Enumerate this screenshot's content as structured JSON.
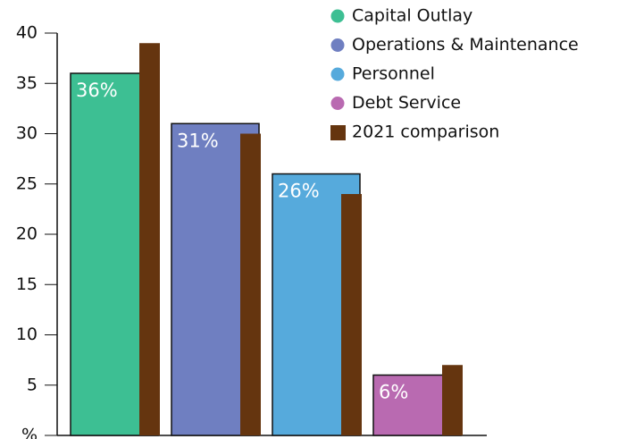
{
  "chart_data": {
    "type": "bar",
    "categories": [
      "Capital Outlay",
      "Operations & Maintenance",
      "Personnel",
      "Debt Service"
    ],
    "series": [
      {
        "values": [
          36,
          31,
          26,
          6
        ],
        "value_labels": [
          "36%",
          "31%",
          "26%",
          "6%"
        ],
        "colors": [
          "#3dbf93",
          "#6f7fc1",
          "#56aadc",
          "#b96ab1"
        ]
      },
      {
        "name": "2021 comparison",
        "color": "#65350f",
        "values": [
          39,
          30,
          24,
          7
        ]
      }
    ],
    "ylim": [
      0,
      40
    ],
    "yticks": [
      {
        "value": 0,
        "label": "%"
      },
      5,
      10,
      15,
      20,
      25,
      30,
      35,
      40
    ],
    "legend": "top-right"
  }
}
